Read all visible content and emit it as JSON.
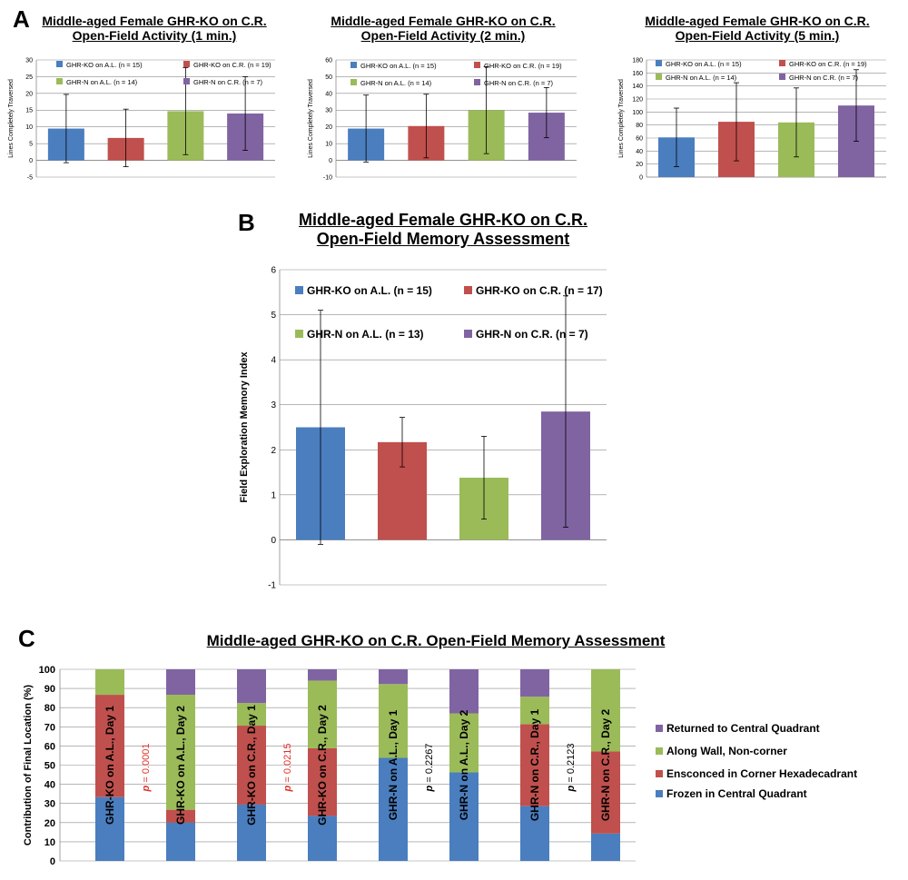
{
  "panel_labels": {
    "a": "A",
    "b": "B",
    "c": "C"
  },
  "chart_data": [
    {
      "type": "bar",
      "title_line1": "Middle-aged Female GHR-KO on C.R.",
      "title_line2": "Open-Field Activity (1 min.)",
      "ylabel": "Lines Completely Traversed",
      "ylim": [
        -5,
        30
      ],
      "yticks": [
        -5,
        0,
        5,
        10,
        15,
        20,
        25,
        30
      ],
      "legend": [
        "GHR-KO on A.L. (n = 15)",
        "GHR-KO on C.R. (n = 19)",
        "GHR-N on A.L. (n = 14)",
        "GHR-N on C.R. (n = 7)"
      ],
      "values": [
        9.5,
        6.7,
        14.7,
        14.0
      ],
      "errors": [
        10.2,
        8.6,
        13.0,
        11.0
      ],
      "colors": [
        "#4a7ebf",
        "#c0504d",
        "#9bbb59",
        "#8064a2"
      ]
    },
    {
      "type": "bar",
      "title_line1": "Middle-aged Female GHR-KO on C.R.",
      "title_line2": "Open-Field Activity (2 min.)",
      "ylabel": "Lines Completely Traversed",
      "ylim": [
        -10,
        60
      ],
      "yticks": [
        -10,
        0,
        10,
        20,
        30,
        40,
        50,
        60
      ],
      "legend": [
        "GHR-KO on A.L. (n = 15)",
        "GHR-KO on C.R. (n = 19)",
        "GHR-N on A.L. (n = 14)",
        "GHR-N on C.R. (n = 7)"
      ],
      "values": [
        19,
        20.5,
        30,
        28.5
      ],
      "errors": [
        20,
        19,
        26,
        15
      ],
      "colors": [
        "#4a7ebf",
        "#c0504d",
        "#9bbb59",
        "#8064a2"
      ]
    },
    {
      "type": "bar",
      "title_line1": "Middle-aged Female GHR-KO on C.R.",
      "title_line2": "Open-Field Activity (5 min.)",
      "ylabel": "Lines Completely Traversed",
      "ylim": [
        0,
        180
      ],
      "yticks": [
        0,
        20,
        40,
        60,
        80,
        100,
        120,
        140,
        160,
        180
      ],
      "legend": [
        "GHR-KO on A.L. (n = 15)",
        "GHR-KO on C.R. (n = 19)",
        "GHR-N on A.L. (n = 14)",
        "GHR-N on C.R. (n = 7)"
      ],
      "values": [
        61,
        85,
        84,
        110
      ],
      "errors": [
        45,
        60,
        53,
        55
      ],
      "colors": [
        "#4a7ebf",
        "#c0504d",
        "#9bbb59",
        "#8064a2"
      ]
    },
    {
      "type": "bar",
      "title_line1": "Middle-aged Female GHR-KO on C.R.",
      "title_line2": "Open-Field Memory Assessment",
      "ylabel": "Field Exploration Memory Index",
      "ylim": [
        -1,
        6
      ],
      "yticks": [
        -1,
        0,
        1,
        2,
        3,
        4,
        5,
        6
      ],
      "legend": [
        "GHR-KO on A.L. (n = 15)",
        "GHR-KO on C.R. (n = 17)",
        "GHR-N on A.L. (n = 13)",
        "GHR-N on C.R. (n = 7)"
      ],
      "values": [
        2.5,
        2.17,
        1.38,
        2.85
      ],
      "errors": [
        2.6,
        0.55,
        0.92,
        2.57
      ],
      "colors": [
        "#4a7ebf",
        "#c0504d",
        "#9bbb59",
        "#8064a2"
      ]
    },
    {
      "type": "stacked-bar",
      "title": "Middle-aged GHR-KO on C.R. Open-Field Memory Assessment",
      "ylabel": "Contribution of Final Location (%)",
      "ylim": [
        0,
        100
      ],
      "yticks": [
        0,
        10,
        20,
        30,
        40,
        50,
        60,
        70,
        80,
        90,
        100
      ],
      "categories": [
        "GHR-KO on A.L., Day 1",
        "GHR-KO on A.L., Day 2",
        "GHR-KO on C.R., Day 1",
        "GHR-KO on C.R., Day 2",
        "GHR-N on A.L., Day 1",
        "GHR-N on A.L., Day 2",
        "GHR-N on C.R., Day 1",
        "GHR-N on C.R., Day 2"
      ],
      "series": [
        {
          "name": "Frozen in Central Quadrant",
          "color": "#4a7ebf",
          "values": [
            33.3,
            20.0,
            29.4,
            23.5,
            53.8,
            46.2,
            28.6,
            14.3
          ]
        },
        {
          "name": "Ensconced in Corner Hexadecadrant",
          "color": "#c0504d",
          "values": [
            53.4,
            6.7,
            41.2,
            35.3,
            0,
            0,
            42.8,
            42.8
          ]
        },
        {
          "name": "Along Wall, Non-corner",
          "color": "#9bbb59",
          "values": [
            13.3,
            60.0,
            11.8,
            35.3,
            38.5,
            30.8,
            14.3,
            42.9
          ]
        },
        {
          "name": "Returned to Central Quadrant",
          "color": "#8064a2",
          "values": [
            0,
            13.3,
            17.6,
            5.9,
            7.7,
            23.0,
            14.3,
            0
          ]
        }
      ],
      "legend_order": [
        "Returned to Central Quadrant",
        "Along Wall, Non-corner",
        "Ensconced in Corner Hexadecadrant",
        "Frozen in Central Quadrant"
      ],
      "annotations": [
        {
          "text_p": "p",
          "text_val": " = 0.0001",
          "between": [
            0,
            1
          ],
          "color": "#e0302a"
        },
        {
          "text_p": "p",
          "text_val": " = 0.0215",
          "between": [
            2,
            3
          ],
          "color": "#e0302a"
        },
        {
          "text_p": "p",
          "text_val": " = 0.2267",
          "between": [
            4,
            5
          ],
          "color": "#000000"
        },
        {
          "text_p": "p",
          "text_val": " = 0.2123",
          "between": [
            6,
            7
          ],
          "color": "#000000"
        }
      ]
    }
  ]
}
